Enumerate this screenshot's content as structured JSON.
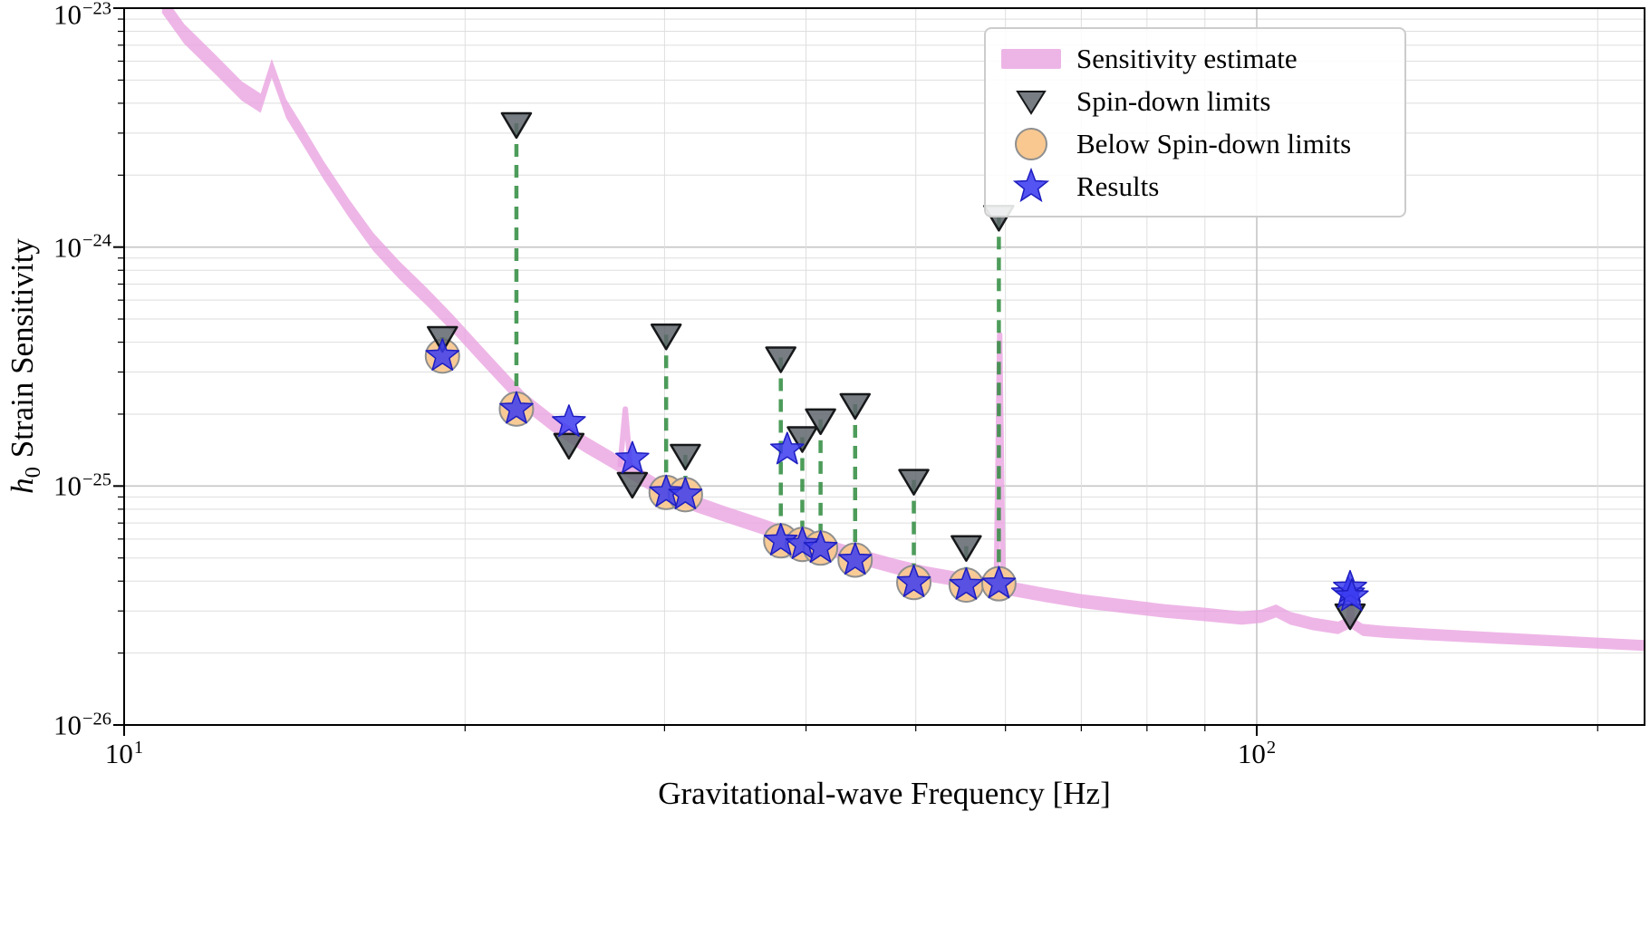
{
  "chart_data": {
    "type": "scatter",
    "title": "",
    "xlabel": "Gravitational-wave Frequency [Hz]",
    "ylabel": {
      "symbol": "h",
      "subscript": "0",
      "text": "Strain Sensitivity"
    },
    "xlim": [
      10,
      220
    ],
    "ylim": [
      1e-26,
      1e-23
    ],
    "x_scale": "log",
    "y_scale": "log",
    "grid": true,
    "x_ticks": [
      {
        "base": "10",
        "exp": "1",
        "value": 10
      },
      {
        "base": "10",
        "exp": "2",
        "value": 100
      }
    ],
    "y_ticks": [
      {
        "base": "10",
        "exp": "−23",
        "value": 1e-23
      },
      {
        "base": "10",
        "exp": "−24",
        "value": 1e-24
      },
      {
        "base": "10",
        "exp": "−25",
        "value": 1e-25
      },
      {
        "base": "10",
        "exp": "−26",
        "value": 1e-26
      }
    ],
    "legend": {
      "position": "upper right",
      "items": [
        {
          "label": "Sensitivity estimate",
          "marker": "band-swatch"
        },
        {
          "label": "Spin-down limits",
          "marker": "triangle-down"
        },
        {
          "label": "Below Spin-down limits",
          "marker": "circle"
        },
        {
          "label": "Results",
          "marker": "star"
        }
      ]
    },
    "colors": {
      "band": "#e9a2e0",
      "triangle_fill": "#5f666c",
      "triangle_edge": "#16181a",
      "circle_fill": "#f8c890",
      "circle_edge": "#8f8f8f",
      "star_fill": "#3c3cf0",
      "star_edge": "#1d1dc0",
      "dashed_line": "#2e8b3d",
      "grid_major": "#c6c6c6",
      "grid_minor": "#dedede",
      "frame": "#000000"
    },
    "sensitivity_band": {
      "name": "Sensitivity estimate",
      "frequencies": [
        10.8,
        11.3,
        12.0,
        12.7,
        13.2,
        13.5,
        13.9,
        14.4,
        15.0,
        15.8,
        16.6,
        17.5,
        18.5,
        19.5,
        20.5,
        21.5,
        22.6,
        24.0,
        25.5,
        27.0,
        28.5,
        30.0,
        32.0,
        34.0,
        36.5,
        39.0,
        42.0,
        45.0,
        48.0,
        51.0,
        54.0,
        57.5,
        61.0,
        65.0,
        70.0,
        76.0,
        83.0,
        90.0,
        97.0,
        101.0,
        104.0,
        107.0,
        112.0,
        118.0,
        121.0,
        124.0,
        130.0,
        140.0,
        152.0,
        166.0,
        182.0,
        200.0,
        220.0
      ],
      "strain": [
        1.05e-23,
        7.8e-24,
        5.9e-24,
        4.5e-24,
        4e-24,
        5.6e-24,
        3.8e-24,
        2.9e-24,
        2.1e-24,
        1.45e-24,
        1.05e-24,
        8e-25,
        6.2e-25,
        4.8e-25,
        3.7e-25,
        2.9e-25,
        2.25e-25,
        1.8e-25,
        1.5e-25,
        1.28e-25,
        1.1e-25,
        9.5e-26,
        8.4e-26,
        7.6e-26,
        6.8e-26,
        6.1e-26,
        5.5e-26,
        5e-26,
        4.6e-26,
        4.3e-26,
        4.1e-26,
        3.9e-26,
        3.7e-26,
        3.5e-26,
        3.3e-26,
        3.15e-26,
        3e-26,
        2.9e-26,
        2.8e-26,
        2.85e-26,
        3e-26,
        2.8e-26,
        2.65e-26,
        2.55e-26,
        2.7e-26,
        2.5e-26,
        2.45e-26,
        2.4e-26,
        2.35e-26,
        2.3e-26,
        2.25e-26,
        2.2e-26,
        2.15e-26
      ]
    },
    "sensitivity_spikes": [
      {
        "points": [
          [
            27.4,
            1.2e-25
          ],
          [
            27.7,
            2.1e-25
          ],
          [
            28.0,
            1.18e-25
          ]
        ]
      },
      {
        "points": [
          [
            58.9,
            3.9e-26
          ],
          [
            59.3,
            4.3e-25
          ],
          [
            59.7,
            3.9e-26
          ]
        ]
      },
      {
        "points": [
          [
            120.5,
            2.62e-26
          ],
          [
            121.0,
            3.7e-26
          ],
          [
            121.5,
            2.6e-26
          ]
        ]
      }
    ],
    "pulsars": [
      {
        "freq": 19.1,
        "result": 3.5e-25,
        "spin_down_limit": 4.2e-25,
        "below_spin_down": true,
        "dashed": true
      },
      {
        "freq": 22.2,
        "result": 2.1e-25,
        "spin_down_limit": 3.3e-24,
        "below_spin_down": true,
        "dashed": true
      },
      {
        "freq": 24.7,
        "result": 1.85e-25,
        "spin_down_limit": 1.5e-25,
        "below_spin_down": false,
        "dashed": false
      },
      {
        "freq": 28.1,
        "result": 1.3e-25,
        "spin_down_limit": 1.03e-25,
        "below_spin_down": false,
        "dashed": false
      },
      {
        "freq": 30.1,
        "result": 9.4e-26,
        "spin_down_limit": 4.3e-25,
        "below_spin_down": true,
        "dashed": true
      },
      {
        "freq": 31.3,
        "result": 9.2e-26,
        "spin_down_limit": 1.35e-25,
        "below_spin_down": true,
        "dashed": true
      },
      {
        "freq": 38.0,
        "result": 5.9e-26,
        "spin_down_limit": 3.45e-25,
        "below_spin_down": true,
        "dashed": true
      },
      {
        "freq": 38.5,
        "result": 1.42e-25,
        "spin_down_limit": null,
        "below_spin_down": false,
        "dashed": false
      },
      {
        "freq": 39.7,
        "result": 5.7e-26,
        "spin_down_limit": 1.6e-25,
        "below_spin_down": true,
        "dashed": true
      },
      {
        "freq": 41.2,
        "result": 5.5e-26,
        "spin_down_limit": 1.9e-25,
        "below_spin_down": true,
        "dashed": true
      },
      {
        "freq": 44.2,
        "result": 4.9e-26,
        "spin_down_limit": 2.2e-25,
        "below_spin_down": true,
        "dashed": true
      },
      {
        "freq": 49.8,
        "result": 3.95e-26,
        "spin_down_limit": 1.06e-25,
        "below_spin_down": true,
        "dashed": true
      },
      {
        "freq": 55.4,
        "result": 3.85e-26,
        "spin_down_limit": 5.6e-26,
        "below_spin_down": true,
        "dashed": true
      },
      {
        "freq": 59.2,
        "result": 3.9e-26,
        "spin_down_limit": 1.35e-24,
        "below_spin_down": true,
        "dashed": true
      },
      {
        "freq": 120.4,
        "result": 3.55e-26,
        "spin_down_limit": null,
        "below_spin_down": false,
        "dashed": false
      },
      {
        "freq": 120.9,
        "result": 3.75e-26,
        "spin_down_limit": 2.9e-26,
        "below_spin_down": false,
        "dashed": false
      },
      {
        "freq": 121.3,
        "result": 3.45e-26,
        "spin_down_limit": null,
        "below_spin_down": false,
        "dashed": false
      }
    ]
  }
}
